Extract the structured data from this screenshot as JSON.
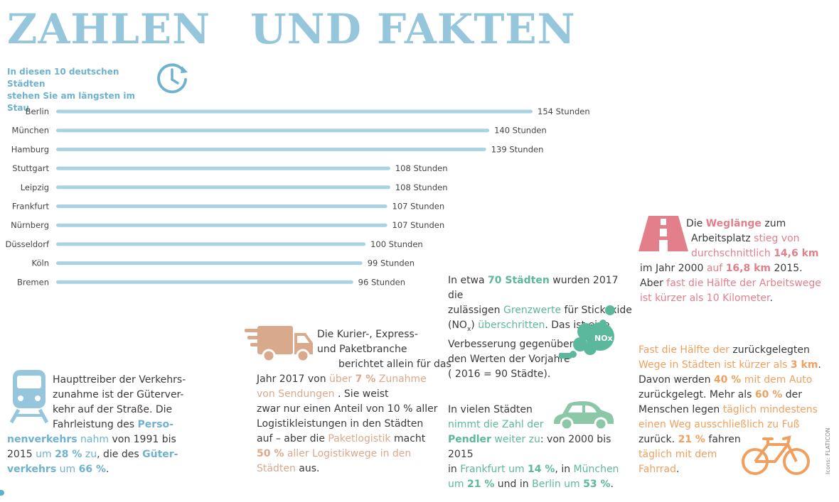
{
  "title": {
    "word1": "ZAHLEN",
    "word2": "UND FAKTEN"
  },
  "subtitle": {
    "line1": "In diesen 10 deutschen Städten",
    "line2": "stehen Sie am längsten im Stau"
  },
  "chart_data": {
    "type": "bar",
    "orientation": "horizontal",
    "categories": [
      "Berlin",
      "München",
      "Hamburg",
      "Stuttgart",
      "Leipzig",
      "Frankfurt",
      "Nürnberg",
      "Düsseldorf",
      "Köln",
      "Bremen"
    ],
    "values": [
      154,
      140,
      139,
      108,
      108,
      107,
      107,
      100,
      99,
      96
    ],
    "value_labels": [
      "154 Stunden",
      "140 Stunden",
      "139 Stunden",
      "108 Stunden",
      "108 Stunden",
      "107 Stunden",
      "107 Stunden",
      "100 Stunden",
      "99 Stunden",
      "96 Stunden"
    ],
    "bar_color": "#a9d2e3",
    "grid": false
  },
  "colors": {
    "title": "#95c6dc",
    "blue": "#6fb2cf",
    "green": "#5bb89c",
    "tan": "#dba88a",
    "pink": "#e37f8b",
    "orange": "#f0a05e",
    "car_green": "#8cc7a8",
    "truck_tan": "#d9a98c"
  },
  "icons": {
    "clock": "clock-icon",
    "train": "train-icon",
    "truck": "truck-icon",
    "pollution": "nox-pollution-icon",
    "car": "car-icon",
    "road": "road-icon",
    "bicycle": "bicycle-icon"
  },
  "nox_label": "NOx",
  "train_text": {
    "t1": "Haupttreiber der Verkehrs-",
    "t2": "zunahme ist der Güterver-",
    "t3": "kehr auf der Straße. Die",
    "t4": "Fahrleistung des ",
    "t4b": "Perso-",
    "t5b": "nenverkehrs",
    "t5": " nahm",
    "t5c": " von 1991 bis",
    "t6": "2015 ",
    "t6a": "um ",
    "t6b": "28 %",
    "t6c": " zu",
    "t6d": ", die des ",
    "t6e": "Güter-",
    "t7b": "verkehrs",
    "t7a": " um ",
    "t7c": "66 %",
    "t7d": "."
  },
  "truck_text": {
    "l1": "Die Kurier-, Express-",
    "l2": "und Paketbranche",
    "l3": "berichtet allein für das",
    "l4a": "Jahr 2017 von ",
    "l4b": "über ",
    "l4c": "7 %",
    "l4d": " Zunahme",
    "l5a": "von Sendungen",
    "l5b": " . Sie weist",
    "l6": "zwar nur einen Anteil von 10 % aller",
    "l7": "Logistikleistungen in den Städten",
    "l8a": "auf – aber die ",
    "l8b": "Paketlogistik",
    "l8c": " macht",
    "l9a": "50 %",
    "l9b": " aller Logistikwege in den",
    "l10a": "Städten",
    "l10b": " aus."
  },
  "nox_text": {
    "l1a": "In etwa ",
    "l1b": "70 Städten",
    "l1c": " wurden 2017 die",
    "l2a": "zulässigen ",
    "l2b": "Grenzwerte",
    "l2c": " für Stickoxide",
    "l3a": "(NO",
    "l3sub": "x",
    "l3b": ") ",
    "l3c": "überschritten",
    "l3d": ". Das ist eine",
    "l4": "Verbesserung gegenüber",
    "l5": "den Werten der Vorjahre",
    "l6": "( 2016 = 90 Städte)."
  },
  "car_text": {
    "l1": "In vielen Städten",
    "l2": "nimmt die Zahl der",
    "l3a": "Pendler",
    "l3b": " weiter zu",
    "l3c": ": von 2000 bis 2015",
    "l4a": "in ",
    "l4b": "Frankfurt um ",
    "l4c": "14 %",
    "l4d": ", in ",
    "l4e": "München",
    "l5a": "um ",
    "l5b": "21 %",
    "l5c": " und in ",
    "l5d": "Berlin um ",
    "l5e": "53 %",
    "l5f": "."
  },
  "road_text": {
    "l1a": "Die ",
    "l1b": "Weglänge",
    "l1c": " zum",
    "l2a": "Arbeitsplatz ",
    "l2b": "stieg von",
    "l3a": "durchschnittlich ",
    "l3b": "14,6 km",
    "l4a": "im Jahr 2000 ",
    "l4b": "auf ",
    "l4c": "16,8 km",
    "l4d": " 2015.",
    "l5a": "Aber ",
    "l5b": "fast die Hälfte der Arbeitswege",
    "l6": "ist kürzer als 10 Kilometer",
    "l6b": "."
  },
  "bike_text": {
    "l1a": "Fast die Hälfte der ",
    "l1b": "zurückgelegten",
    "l2a": "Wege in Städten ist kürzer als ",
    "l2b": "3 km",
    "l2c": ".",
    "l3a": "Davon werden ",
    "l3b": "40 %",
    "l3c": " mit dem Auto",
    "l4": "zurückgelegt. Mehr als ",
    "l4b": "60 %",
    "l4c": " der",
    "l5a": "Menschen legen ",
    "l5b": "täglich mindestens",
    "l6": "einen Weg ausschließlich zu Fuß",
    "l7a": "zurück. ",
    "l7b": "21 %",
    "l7c": " fahren",
    "l8": "täglich mit dem",
    "l9": "Fahrrad",
    "l9b": "."
  },
  "credit": "Icons: FLATICON"
}
